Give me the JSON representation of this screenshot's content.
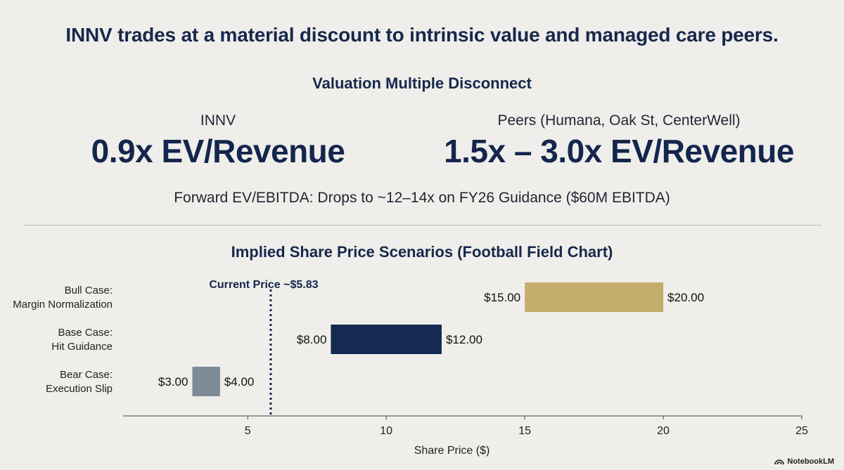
{
  "headline": "INNV trades at a material discount to intrinsic value and managed care peers.",
  "multiples": {
    "section_title": "Valuation Multiple Disconnect",
    "innv_label": "INNV",
    "innv_value": "0.9x EV/Revenue",
    "peers_label": "Peers (Humana, Oak St, CenterWell)",
    "peers_value": "1.5x – 3.0x EV/Revenue",
    "forward_note": "Forward EV/EBITDA: Drops to ~12–14x on FY26 Guidance ($60M EBITDA)"
  },
  "chart_data": {
    "type": "bar",
    "subtype": "football-field",
    "title": "Implied Share Price Scenarios (Football Field Chart)",
    "xlabel": "Share Price ($)",
    "xlim": [
      0.5,
      25
    ],
    "xticks": [
      5,
      10,
      15,
      20,
      25
    ],
    "reference_line": {
      "label": "Current Price ~$5.83",
      "value": 5.83
    },
    "categories": [
      [
        "Bull Case:",
        "Margin Normalization"
      ],
      [
        "Base Case:",
        "Hit Guidance"
      ],
      [
        "Bear Case:",
        "Execution Slip"
      ]
    ],
    "ranges": [
      {
        "low": 15.0,
        "high": 20.0,
        "low_label": "$15.00",
        "high_label": "$20.00",
        "color": "#c5ad6c"
      },
      {
        "low": 8.0,
        "high": 12.0,
        "low_label": "$8.00",
        "high_label": "$12.00",
        "color": "#152a52"
      },
      {
        "low": 3.0,
        "high": 4.0,
        "low_label": "$3.00",
        "high_label": "$4.00",
        "color": "#7d8a98"
      }
    ]
  },
  "brand": "NotebookLM"
}
